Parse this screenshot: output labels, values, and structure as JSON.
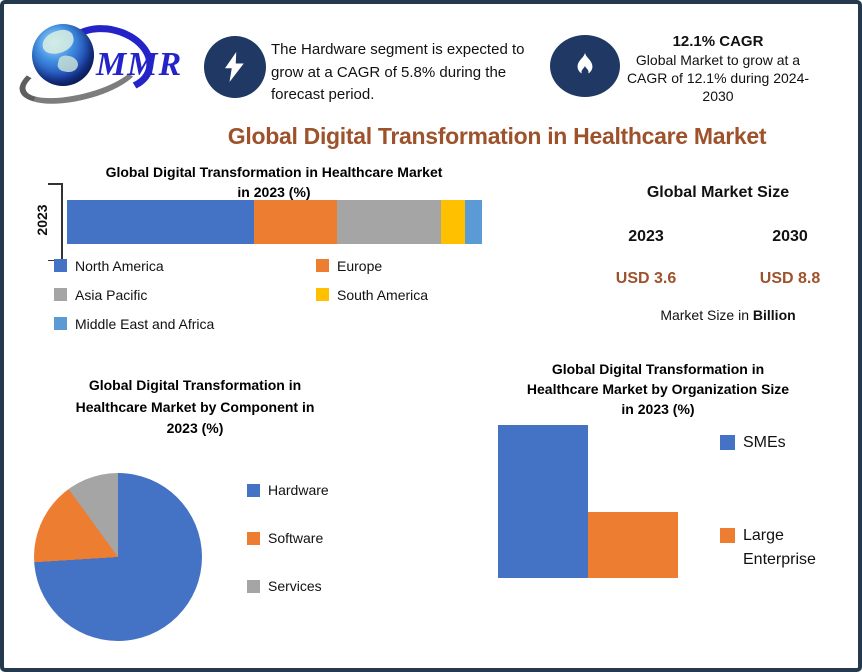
{
  "window": {
    "border_color": "#24384E",
    "background": "#FFFFFF"
  },
  "logo": {
    "brand": "MMR",
    "brand_color": "#2323C8",
    "globe_icon": "globe-icon"
  },
  "callouts": {
    "hardware": {
      "icon": "lightning-icon",
      "icon_bg": "#1F3864",
      "text": "The Hardware segment is expected to grow at a CAGR of 5.8% during the forecast period."
    },
    "cagr": {
      "icon": "flame-icon",
      "icon_bg": "#1F3864",
      "headline": "12.1% CAGR",
      "text": "Global Market to grow at a CAGR of 12.1% during 2024-2030"
    }
  },
  "main_title": {
    "text": "Global Digital Transformation in Healthcare Market",
    "color": "#9E522B"
  },
  "market_size": {
    "title": "Global Market Size",
    "years": [
      "2023",
      "2030"
    ],
    "values": [
      "USD 3.6",
      "USD 8.8"
    ],
    "value_color": "#9E522B",
    "note_prefix": "Market Size in",
    "note_bold": "Billion"
  },
  "chart_data": [
    {
      "id": "regional-share-2023",
      "type": "bar",
      "subtype": "horizontal-stacked",
      "title": "Global Digital Transformation in Healthcare Market in 2023 (%)",
      "title_lines": [
        "Global Digital Transformation in Healthcare Market",
        "in 2023 (%)"
      ],
      "category_axis_label": "2023",
      "categories": [
        "2023"
      ],
      "xlim": [
        0,
        100
      ],
      "unit": "%",
      "legend_position": "bottom",
      "series": [
        {
          "name": "North America",
          "values": [
            45
          ],
          "color": "#4472C4"
        },
        {
          "name": "Europe",
          "values": [
            20
          ],
          "color": "#ED7D31"
        },
        {
          "name": "Asia Pacific",
          "values": [
            25
          ],
          "color": "#A5A5A5"
        },
        {
          "name": "South America",
          "values": [
            6
          ],
          "color": "#FFC000"
        },
        {
          "name": "Middle East and Africa",
          "values": [
            4
          ],
          "color": "#5B9BD5"
        }
      ]
    },
    {
      "id": "component-share-2023",
      "type": "pie",
      "title": "Global Digital Transformation in Healthcare Market by Component in 2023 (%)",
      "title_lines": [
        "Global Digital Transformation in",
        "Healthcare Market by Component in",
        "2023 (%)"
      ],
      "unit": "%",
      "legend_position": "right",
      "slices": [
        {
          "name": "Hardware",
          "value": 74,
          "color": "#4472C4"
        },
        {
          "name": "Software",
          "value": 16,
          "color": "#ED7D31"
        },
        {
          "name": "Services",
          "value": 10,
          "color": "#A5A5A5"
        }
      ]
    },
    {
      "id": "organization-share-2023",
      "type": "bar",
      "subtype": "vertical",
      "title": "Global Digital Transformation in Healthcare Market by Organization Size in 2023 (%)",
      "title_lines": [
        "Global Digital Transformation in",
        "Healthcare Market by Organization Size",
        "in 2023 (%)"
      ],
      "unit": "%",
      "legend_position": "right",
      "bars": [
        {
          "name": "SMEs",
          "value": 70,
          "color": "#4472C4"
        },
        {
          "name": "Large Enterprise",
          "value": 30,
          "color": "#ED7D31"
        }
      ]
    }
  ]
}
